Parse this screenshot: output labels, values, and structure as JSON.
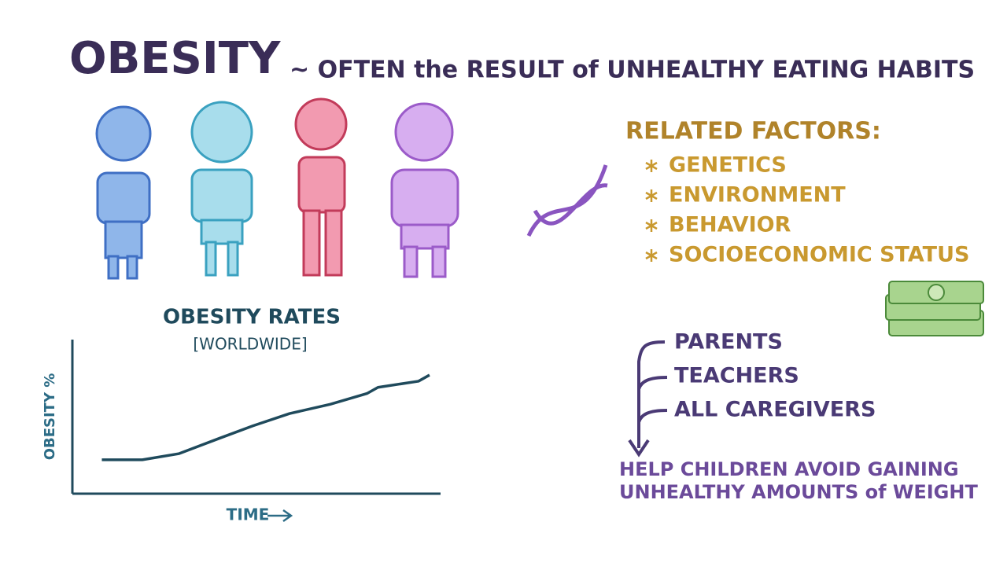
{
  "header": {
    "title": "OBESITY",
    "subtitle": "~ OFTEN the RESULT of UNHEALTHY EATING HABITS"
  },
  "factors": {
    "heading": "RELATED FACTORS:",
    "items": [
      "GENETICS",
      "ENVIRONMENT",
      "BEHAVIOR",
      "SOCIOECONOMIC STATUS"
    ]
  },
  "caregivers": {
    "items": [
      "PARENTS",
      "TEACHERS",
      "ALL CAREGIVERS"
    ],
    "conclusion": [
      "HELP CHILDREN AVOID GAINING",
      "UNHEALTHY AMOUNTS of WEIGHT"
    ]
  },
  "chart_data": {
    "type": "line",
    "title": "OBESITY RATES",
    "subtitle": "[WORLDWIDE]",
    "x_label": "TIME",
    "y_label": "OBESITY %",
    "x": [
      0.8,
      1.9,
      2.9,
      4.0,
      4.9,
      5.9,
      7.0,
      8.0,
      8.3,
      9.4,
      9.7
    ],
    "values": [
      22,
      22,
      26,
      36,
      44,
      52,
      58,
      65,
      69,
      73,
      77
    ],
    "xlim": [
      0,
      10
    ],
    "ylim": [
      0,
      100
    ],
    "color": "#1f4a5c"
  }
}
